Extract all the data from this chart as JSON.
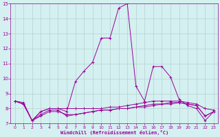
{
  "x": [
    0,
    1,
    2,
    3,
    4,
    5,
    6,
    7,
    8,
    9,
    10,
    11,
    12,
    13,
    14,
    15,
    16,
    17,
    18,
    19,
    20,
    21,
    22,
    23
  ],
  "line1": [
    8.5,
    8.4,
    7.2,
    7.8,
    8.0,
    8.0,
    7.8,
    9.8,
    10.5,
    11.1,
    12.7,
    12.7,
    14.7,
    15.0,
    9.5,
    8.5,
    10.8,
    10.8,
    10.1,
    8.6,
    8.2,
    8.0,
    7.2,
    7.8
  ],
  "line2": [
    8.5,
    8.3,
    7.2,
    7.8,
    8.0,
    8.0,
    8.0,
    8.0,
    8.0,
    8.0,
    8.0,
    8.1,
    8.1,
    8.2,
    8.3,
    8.4,
    8.5,
    8.5,
    8.5,
    8.5,
    8.4,
    8.3,
    8.0,
    7.9
  ],
  "line3": [
    8.5,
    8.3,
    7.2,
    7.5,
    7.8,
    7.8,
    7.6,
    7.6,
    7.7,
    7.8,
    7.9,
    7.9,
    8.0,
    8.0,
    8.1,
    8.1,
    8.2,
    8.3,
    8.3,
    8.4,
    8.3,
    8.2,
    7.5,
    7.8
  ],
  "line4": [
    8.5,
    8.3,
    7.2,
    7.6,
    7.9,
    7.9,
    7.5,
    7.6,
    7.7,
    7.8,
    7.9,
    7.9,
    8.0,
    8.0,
    8.1,
    8.2,
    8.3,
    8.3,
    8.4,
    8.4,
    8.3,
    8.2,
    7.5,
    7.8
  ],
  "line_color": "#990099",
  "bg_color": "#d4f0f0",
  "grid_color": "#b8d0d0",
  "xlabel": "Windchill (Refroidissement éolien,°C)",
  "ylim": [
    7,
    15
  ],
  "xlim": [
    -0.5,
    23.5
  ],
  "yticks": [
    7,
    8,
    9,
    10,
    11,
    12,
    13,
    14,
    15
  ],
  "xticks": [
    0,
    1,
    2,
    3,
    4,
    5,
    6,
    7,
    8,
    9,
    10,
    11,
    12,
    13,
    14,
    15,
    16,
    17,
    18,
    19,
    20,
    21,
    22,
    23
  ]
}
